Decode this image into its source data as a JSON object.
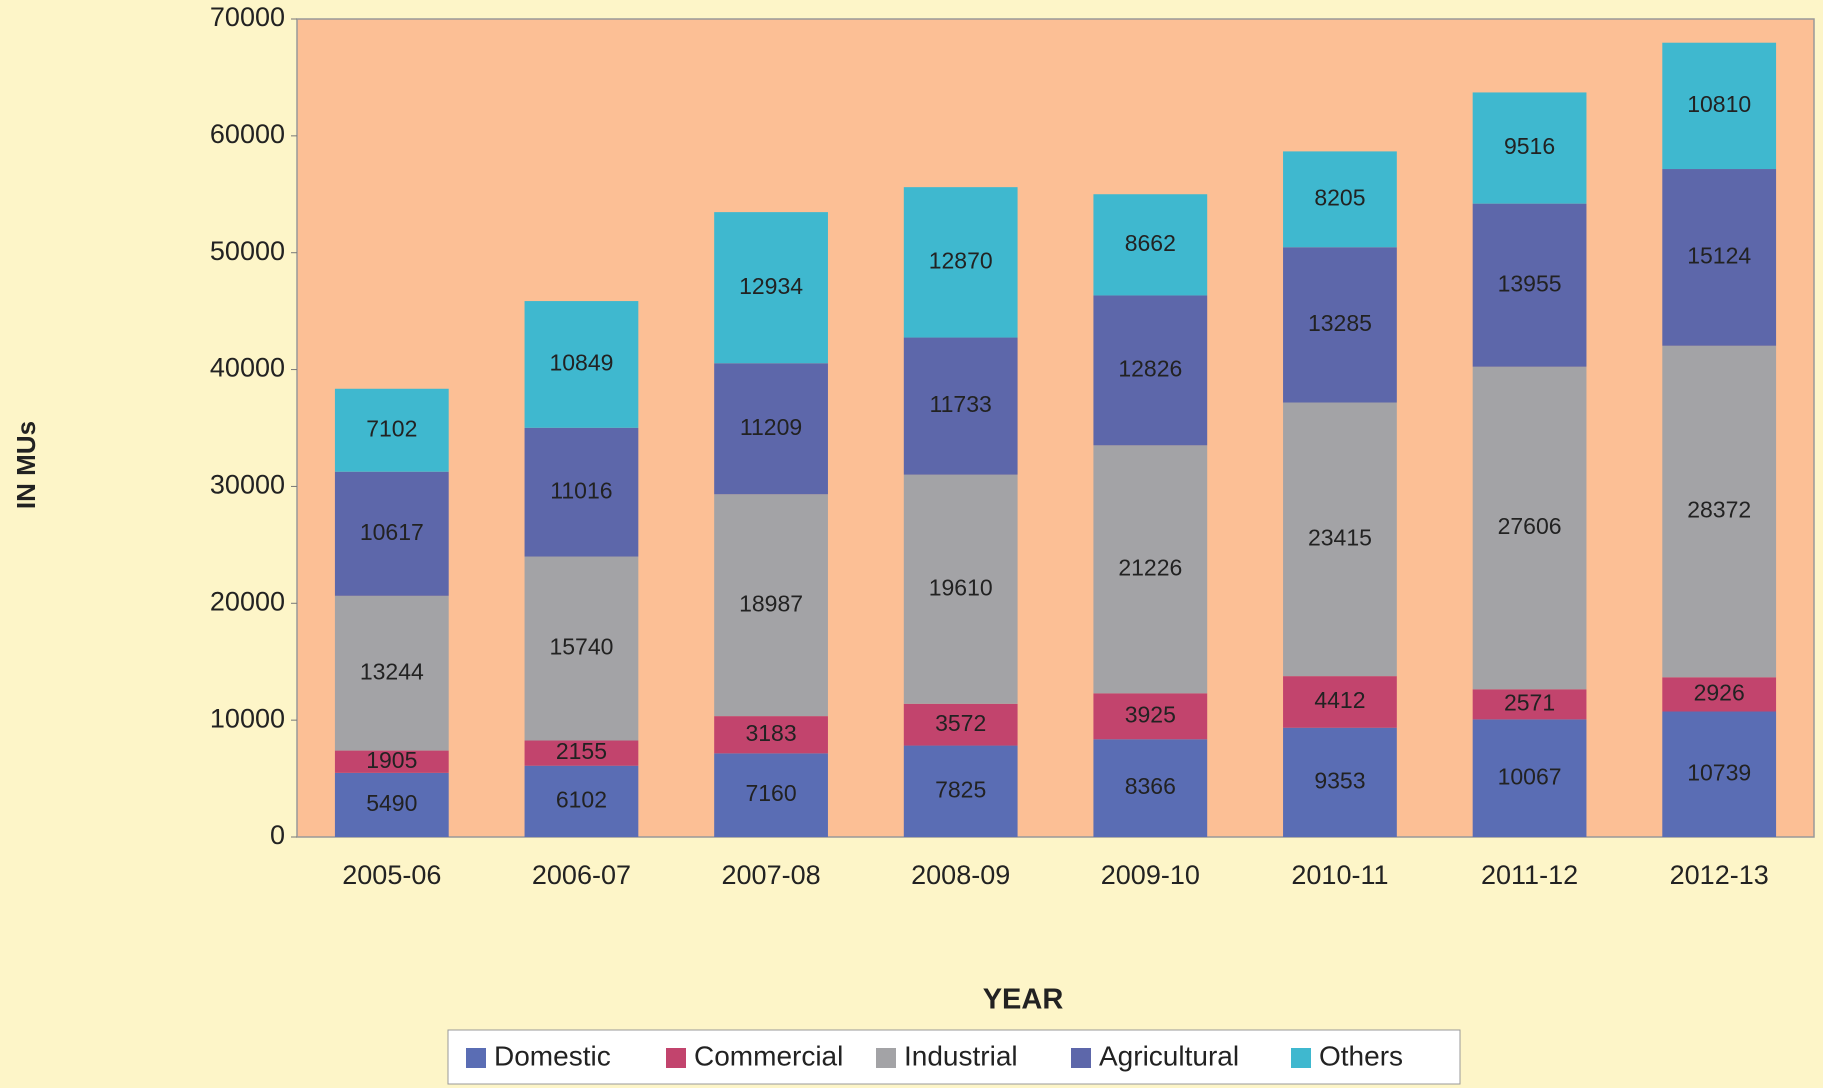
{
  "chart_data": {
    "type": "stacked_bar",
    "x_label": "YEAR",
    "y_label": "IN MUs",
    "categories": [
      "2005-06",
      "2006-07",
      "2007-08",
      "2008-09",
      "2009-10",
      "2010-11",
      "2011-12",
      "2012-13"
    ],
    "series": [
      {
        "name": "Domestic",
        "color": "#5a6db4",
        "values": [
          5490,
          6102,
          7160,
          7825,
          8366,
          9353,
          10067,
          10739
        ]
      },
      {
        "name": "Commercial",
        "color": "#c2446d",
        "values": [
          1905,
          2155,
          3183,
          3572,
          3925,
          4412,
          2571,
          2926
        ]
      },
      {
        "name": "Industrial",
        "color": "#a3a3a6",
        "values": [
          13244,
          15740,
          18987,
          19610,
          21226,
          23415,
          27606,
          28372
        ]
      },
      {
        "name": "Agricultural",
        "color": "#5d67aa",
        "values": [
          10617,
          11016,
          11209,
          11733,
          12826,
          13285,
          13955,
          15124
        ]
      },
      {
        "name": "Others",
        "color": "#3fb8cf",
        "values": [
          7102,
          10849,
          12934,
          12870,
          8662,
          8205,
          9516,
          10810
        ]
      }
    ],
    "ylim": [
      0,
      70000
    ],
    "yticks": [
      0,
      10000,
      20000,
      30000,
      40000,
      50000,
      60000,
      70000
    ],
    "plot_background": "#fcbf95",
    "legend": "bottom"
  }
}
